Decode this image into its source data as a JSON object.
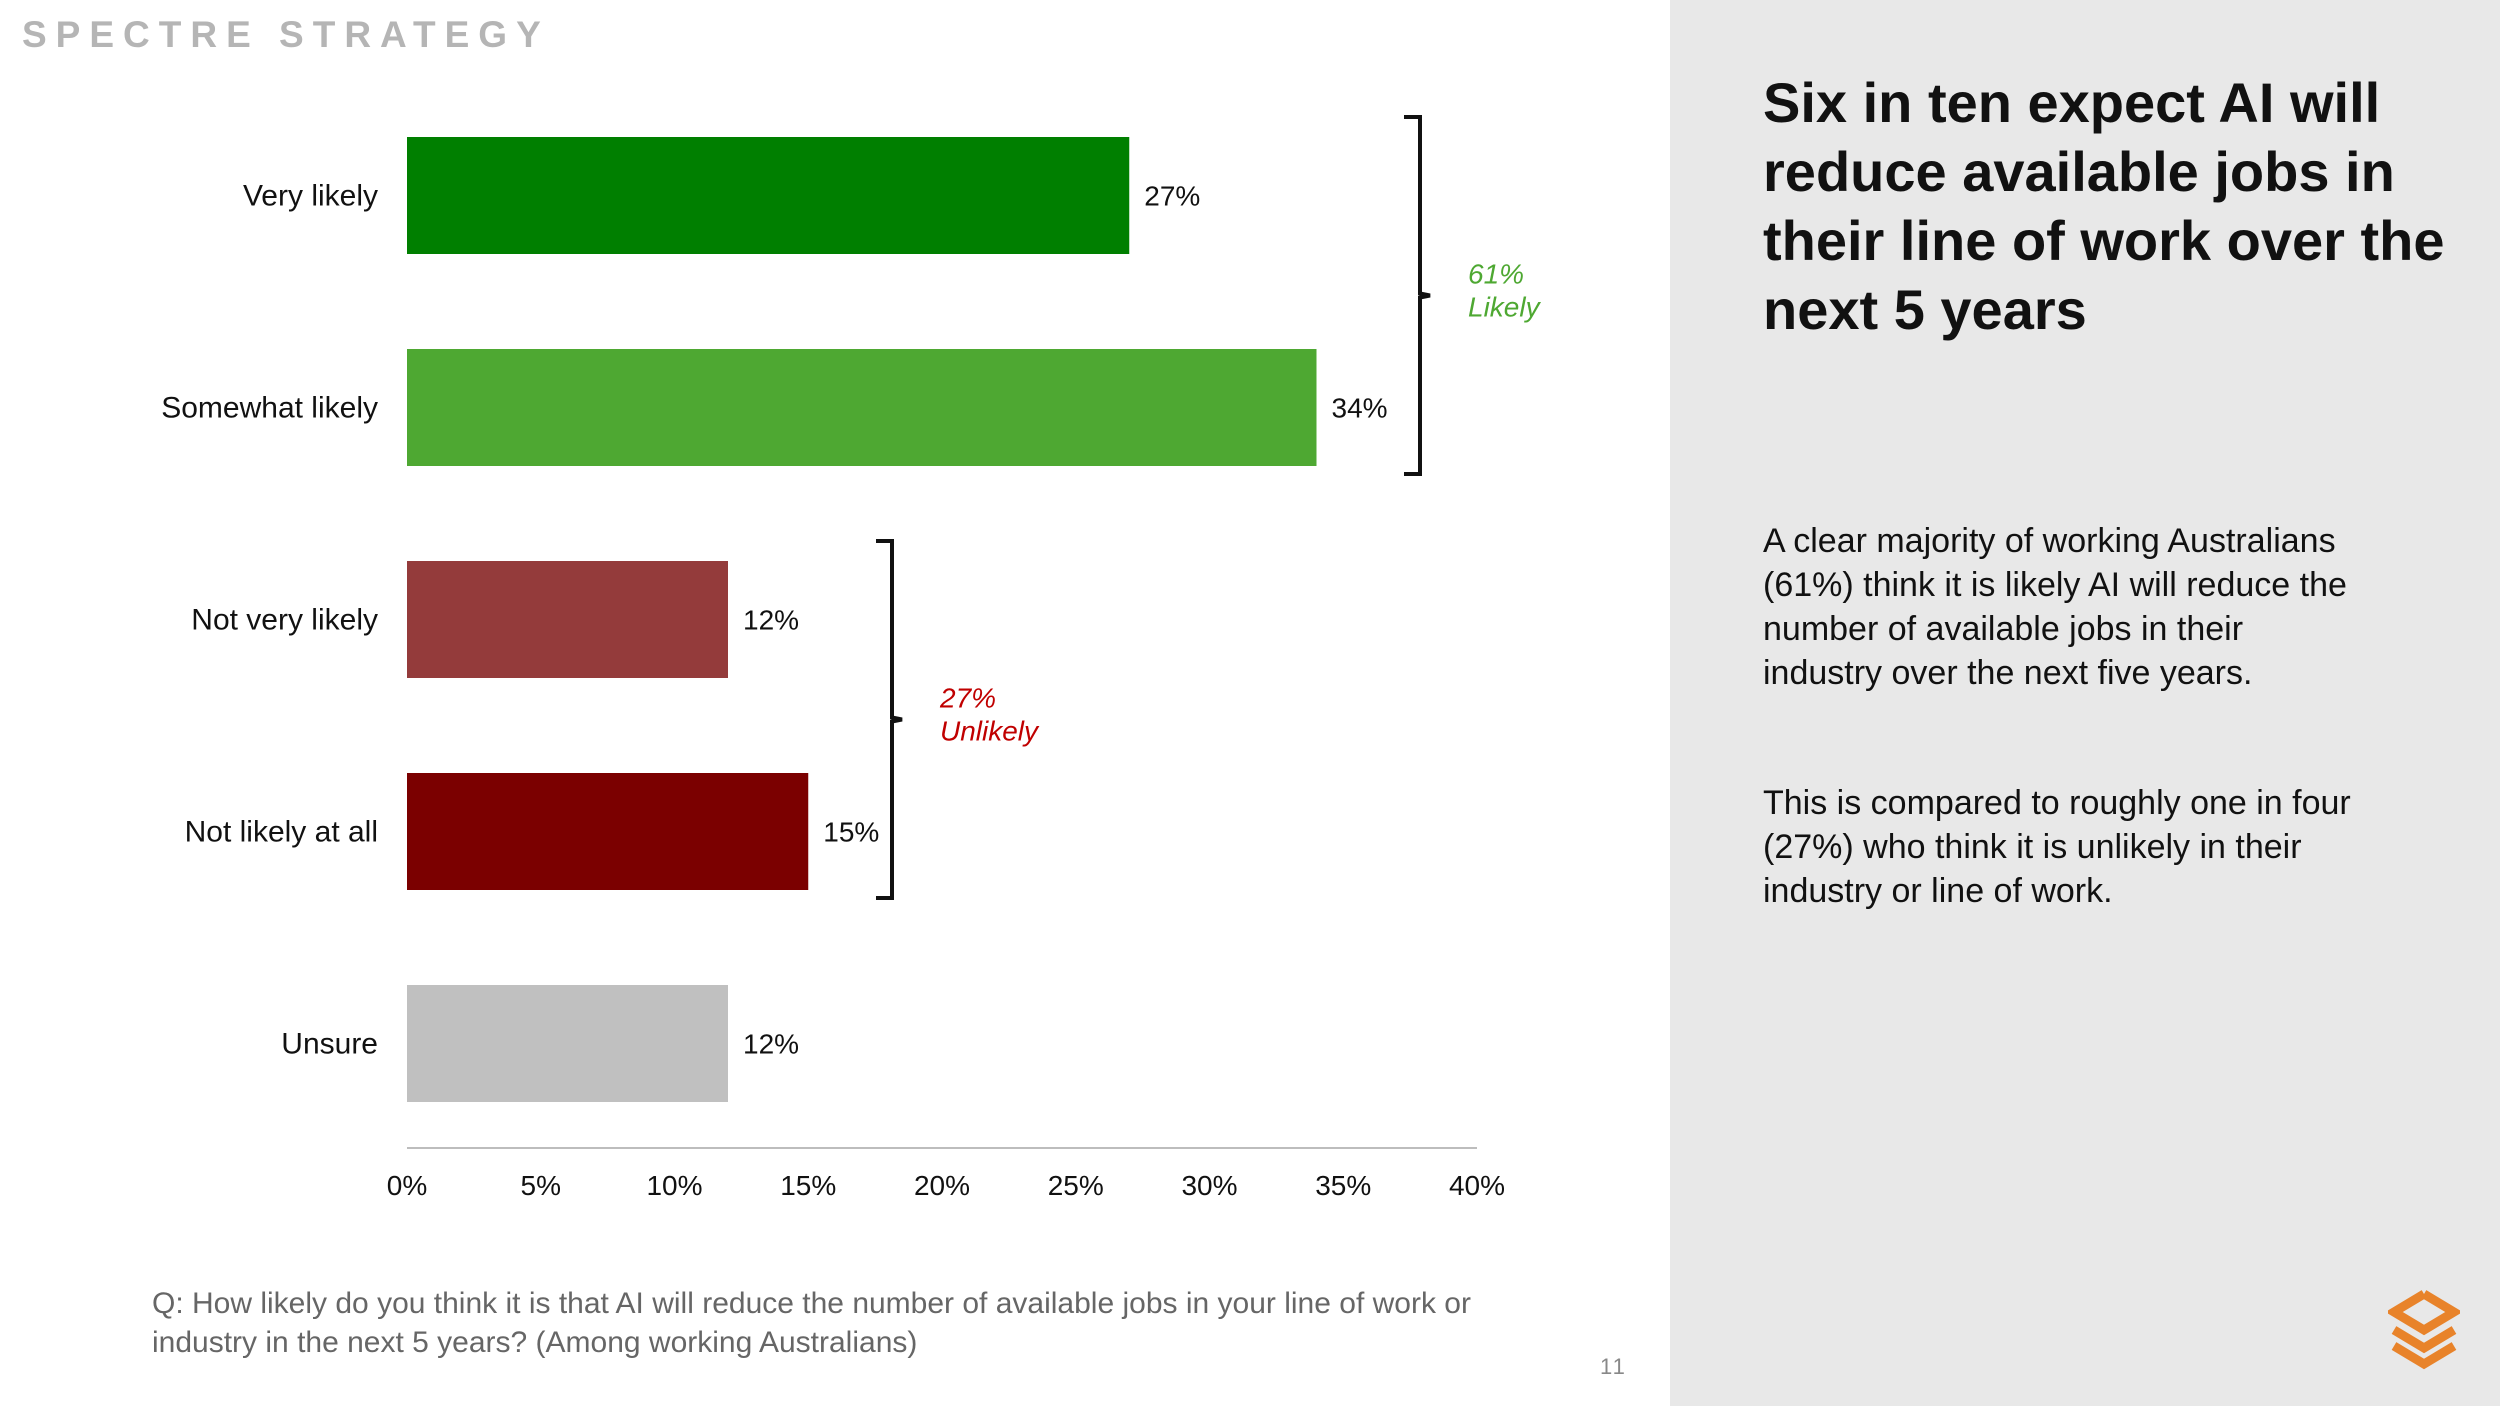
{
  "brand": "SPECTRE STRATEGY",
  "chart_data": {
    "type": "bar",
    "orientation": "horizontal",
    "categories": [
      "Very likely",
      "Somewhat likely",
      "Not very likely",
      "Not likely at all",
      "Unsure"
    ],
    "values": [
      27,
      34,
      12,
      15,
      12
    ],
    "value_labels": [
      "27%",
      "34%",
      "12%",
      "15%",
      "12%"
    ],
    "colors": [
      "#007f00",
      "#4ea832",
      "#943b3b",
      "#7b0000",
      "#c0c0c0"
    ],
    "xlim": [
      0,
      40
    ],
    "xticks": [
      0,
      5,
      10,
      15,
      20,
      25,
      30,
      35,
      40
    ],
    "xtick_labels": [
      "0%",
      "5%",
      "10%",
      "15%",
      "20%",
      "25%",
      "30%",
      "35%",
      "40%"
    ],
    "xlabel": "",
    "ylabel": "",
    "grid": false,
    "brackets": [
      {
        "from": 0,
        "to": 1,
        "value": "61%",
        "label": "Likely",
        "color": "#4ea832"
      },
      {
        "from": 2,
        "to": 3,
        "value": "27%",
        "label": "Unlikely",
        "color": "#c00000"
      }
    ]
  },
  "question": "Q: How likely do you think it is that AI will reduce the number of available jobs in your line of work or industry in the next 5 years? (Among working Australians)",
  "page_number": "11",
  "sidebar": {
    "headline": "Six in ten expect AI will reduce available jobs in their line of work over the next 5 years",
    "paragraph_1": "A clear majority of working Australians (61%) think it is likely AI will reduce the number of available jobs in their industry over the next five years.",
    "paragraph_2": "This is compared to roughly one in four (27%) who think it is unlikely in their industry or line of work."
  },
  "colors": {
    "sidebar_bg": "#e8e8e8",
    "logo": "#e8832a"
  },
  "icons": {
    "logo": "spectre-strategy-logo-icon"
  }
}
